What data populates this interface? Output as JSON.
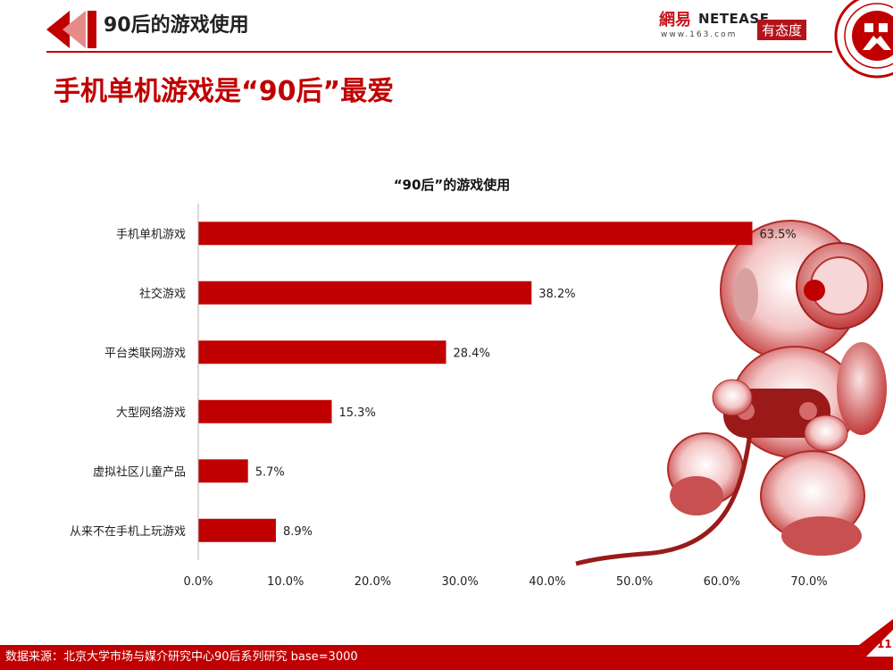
{
  "header": {
    "title": "90后的游戏使用",
    "subtitle": "手机单机游戏是“90后”最爱"
  },
  "logos": {
    "netease_cn": "網易",
    "netease_en": "NETEASE",
    "netease_url": "www.163.com",
    "youtaidu": "有态度"
  },
  "footer": {
    "source": "数据来源：北京大学市场与媒介研究中心90后系列研究 base=3000",
    "page_number": "11"
  },
  "colors": {
    "accent": "#c00000",
    "bar": "#c00000"
  },
  "chart_data": {
    "type": "bar",
    "orientation": "horizontal",
    "title": "“90后”的游戏使用",
    "categories": [
      "手机单机游戏",
      "社交游戏",
      "平台类联网游戏",
      "大型网络游戏",
      "虚拟社区儿童产品",
      "从来不在手机上玩游戏"
    ],
    "values": [
      63.5,
      38.2,
      28.4,
      15.3,
      5.7,
      8.9
    ],
    "value_labels": [
      "63.5%",
      "38.2%",
      "28.4%",
      "15.3%",
      "5.7%",
      "8.9%"
    ],
    "xlim": [
      0,
      70
    ],
    "xticks": [
      0,
      10,
      20,
      30,
      40,
      50,
      60,
      70
    ],
    "xtick_labels": [
      "0.0%",
      "10.0%",
      "20.0%",
      "30.0%",
      "40.0%",
      "50.0%",
      "60.0%",
      "70.0%"
    ],
    "xlabel": "",
    "ylabel": ""
  }
}
